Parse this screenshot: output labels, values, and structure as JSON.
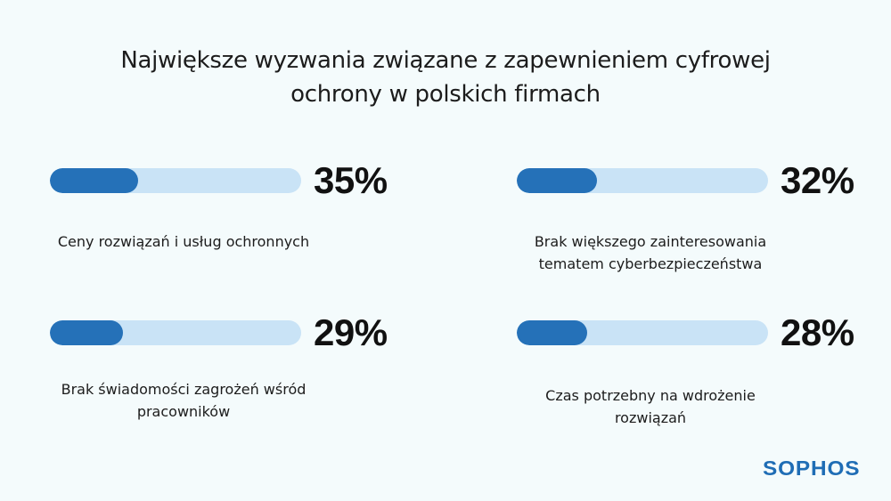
{
  "title_lines": [
    "Największe wyzwania związane z zapewnieniem cyfrowej",
    "ochrony w polskich firmach"
  ],
  "colors": {
    "bar_fill": "#2571b8",
    "bar_track": "#c9e3f6",
    "brand": "#1f6db5"
  },
  "chart_data": {
    "type": "bar",
    "title": "Największe wyzwania związane z zapewnieniem cyfrowej ochrony w polskich firmach",
    "unit": "%",
    "ylim": [
      0,
      100
    ],
    "items": [
      {
        "pct_label": "35%",
        "value": 35,
        "label_lines": [
          "Ceny rozwiązań i usług ochronnych"
        ]
      },
      {
        "pct_label": "32%",
        "value": 32,
        "label_lines": [
          "Brak większego zainteresowania",
          "tematem cyberbezpieczeństwa"
        ]
      },
      {
        "pct_label": "29%",
        "value": 29,
        "label_lines": [
          "Brak świadomości zagrożeń wśród",
          "pracowników"
        ]
      },
      {
        "pct_label": "28%",
        "value": 28,
        "label_lines": [
          "Czas potrzebny na wdrożenie",
          "rozwiązań"
        ]
      }
    ]
  },
  "logo": "SOPHOS"
}
